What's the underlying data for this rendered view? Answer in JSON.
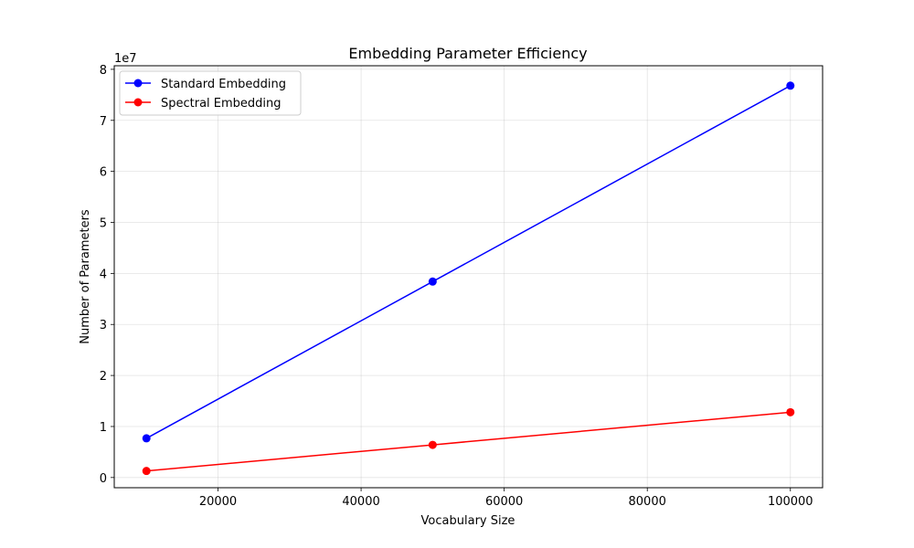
{
  "chart_data": {
    "type": "line",
    "title": "Embedding Parameter Efficiency",
    "xlabel": "Vocabulary Size",
    "ylabel": "Number of Parameters",
    "y_offset_text": "1e7",
    "y_scale_factor": 10000000,
    "xlim": [
      5500,
      104500
    ],
    "ylim": [
      -2000000,
      80700000
    ],
    "x_ticks": [
      20000,
      40000,
      60000,
      80000,
      100000
    ],
    "y_ticks": [
      0,
      1,
      2,
      3,
      4,
      5,
      6,
      7,
      8
    ],
    "grid": true,
    "legend_position": "top-left",
    "x": [
      10000,
      50000,
      100000
    ],
    "series": [
      {
        "name": "Standard Embedding",
        "color": "#0000ff",
        "marker": "circle",
        "values": [
          7680000,
          38400000,
          76800000
        ]
      },
      {
        "name": "Spectral Embedding",
        "color": "#ff0000",
        "marker": "circle",
        "values": [
          1280000,
          6400000,
          12800000
        ]
      }
    ]
  }
}
